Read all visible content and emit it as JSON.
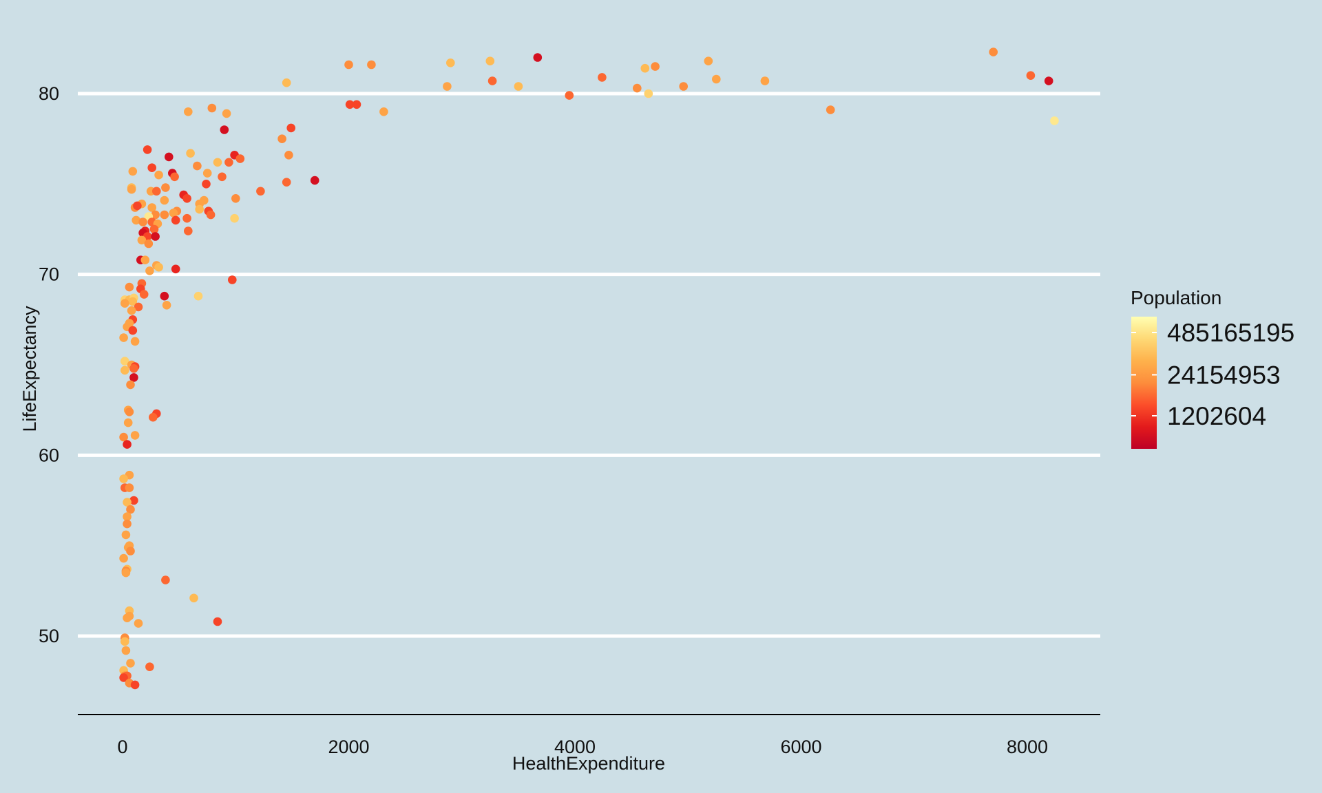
{
  "chart_data": {
    "type": "scatter",
    "title": "",
    "xlabel": "HealthExpenditure",
    "ylabel": "LifeExpectancy",
    "xlim": [
      -200,
      8600
    ],
    "ylim": [
      45.7,
      83.6
    ],
    "x_ticks": [
      0,
      2000,
      4000,
      6000,
      8000
    ],
    "y_ticks": [
      50,
      60,
      70,
      80
    ],
    "grid": "horizontal-major",
    "legend": {
      "title": "Population",
      "placement": "right",
      "labels": [
        "485165195",
        "24154953",
        "1202604"
      ],
      "label_fractions": [
        0.88,
        0.56,
        0.25
      ],
      "color_stops": [
        "#bd0026",
        "#e31a1c",
        "#fc4e2a",
        "#fd8d3c",
        "#feb24c",
        "#fed976",
        "#ffffb2"
      ]
    },
    "colors": {
      "background": "#cddfe6",
      "grid": "#ffffff",
      "axis": "#000000"
    },
    "points": [
      [
        2000,
        81.6,
        0.5
      ],
      [
        2200,
        81.6,
        0.5
      ],
      [
        2900,
        81.7,
        0.7
      ],
      [
        3250,
        81.8,
        0.7
      ],
      [
        3670,
        82.0,
        0.1
      ],
      [
        7700,
        82.3,
        0.5
      ],
      [
        8030,
        81.0,
        0.4
      ],
      [
        8190,
        80.7,
        0.1
      ],
      [
        8240,
        78.5,
        0.9
      ],
      [
        4240,
        80.9,
        0.4
      ],
      [
        4620,
        81.4,
        0.7
      ],
      [
        4710,
        81.5,
        0.5
      ],
      [
        5180,
        81.8,
        0.6
      ],
      [
        5250,
        80.8,
        0.6
      ],
      [
        5680,
        80.7,
        0.6
      ],
      [
        4550,
        80.3,
        0.5
      ],
      [
        4650,
        80.0,
        0.8
      ],
      [
        4960,
        80.4,
        0.5
      ],
      [
        3950,
        79.9,
        0.4
      ],
      [
        3500,
        80.4,
        0.7
      ],
      [
        3270,
        80.7,
        0.4
      ],
      [
        2870,
        80.4,
        0.6
      ],
      [
        2310,
        79.0,
        0.6
      ],
      [
        2070,
        79.4,
        0.3
      ],
      [
        2010,
        79.4,
        0.3
      ],
      [
        6260,
        79.1,
        0.5
      ],
      [
        1450,
        80.6,
        0.7
      ],
      [
        1490,
        78.1,
        0.3
      ],
      [
        1410,
        77.5,
        0.5
      ],
      [
        1470,
        76.6,
        0.5
      ],
      [
        1450,
        75.1,
        0.4
      ],
      [
        1700,
        75.2,
        0.1
      ],
      [
        1220,
        74.6,
        0.4
      ],
      [
        790,
        79.2,
        0.5
      ],
      [
        920,
        78.9,
        0.6
      ],
      [
        580,
        79.0,
        0.6
      ],
      [
        900,
        78.0,
        0.1
      ],
      [
        600,
        76.7,
        0.7
      ],
      [
        840,
        76.2,
        0.7
      ],
      [
        940,
        76.2,
        0.4
      ],
      [
        990,
        76.6,
        0.2
      ],
      [
        1040,
        76.4,
        0.4
      ],
      [
        410,
        76.5,
        0.1
      ],
      [
        220,
        76.9,
        0.3
      ],
      [
        660,
        76.0,
        0.5
      ],
      [
        750,
        75.6,
        0.6
      ],
      [
        880,
        75.4,
        0.4
      ],
      [
        260,
        75.9,
        0.3
      ],
      [
        440,
        75.6,
        0.1
      ],
      [
        460,
        75.4,
        0.4
      ],
      [
        320,
        75.5,
        0.6
      ],
      [
        90,
        75.7,
        0.6
      ],
      [
        80,
        74.8,
        0.7
      ],
      [
        80,
        74.7,
        0.6
      ],
      [
        740,
        75.0,
        0.3
      ],
      [
        540,
        74.4,
        0.2
      ],
      [
        570,
        74.2,
        0.3
      ],
      [
        250,
        74.6,
        0.6
      ],
      [
        300,
        74.6,
        0.4
      ],
      [
        380,
        74.8,
        0.5
      ],
      [
        720,
        74.1,
        0.6
      ],
      [
        1000,
        74.2,
        0.5
      ],
      [
        370,
        74.1,
        0.6
      ],
      [
        680,
        73.9,
        0.6
      ],
      [
        170,
        73.9,
        0.6
      ],
      [
        110,
        73.7,
        0.5
      ],
      [
        130,
        73.8,
        0.3
      ],
      [
        260,
        73.7,
        0.6
      ],
      [
        680,
        73.6,
        0.7
      ],
      [
        480,
        73.5,
        0.5
      ],
      [
        450,
        73.4,
        0.6
      ],
      [
        760,
        73.5,
        0.3
      ],
      [
        780,
        73.3,
        0.4
      ],
      [
        370,
        73.3,
        0.5
      ],
      [
        290,
        73.3,
        0.5
      ],
      [
        230,
        73.2,
        0.9
      ],
      [
        990,
        73.1,
        0.8
      ],
      [
        570,
        73.1,
        0.4
      ],
      [
        470,
        73.0,
        0.3
      ],
      [
        120,
        73.0,
        0.6
      ],
      [
        180,
        72.9,
        0.5
      ],
      [
        260,
        72.9,
        0.4
      ],
      [
        310,
        72.8,
        0.6
      ],
      [
        280,
        72.5,
        0.4
      ],
      [
        580,
        72.4,
        0.4
      ],
      [
        200,
        72.4,
        0.2
      ],
      [
        180,
        72.3,
        0.1
      ],
      [
        220,
        72.1,
        0.3
      ],
      [
        290,
        72.1,
        0.1
      ],
      [
        170,
        71.9,
        0.6
      ],
      [
        230,
        71.7,
        0.5
      ],
      [
        160,
        70.8,
        0.1
      ],
      [
        200,
        70.8,
        0.6
      ],
      [
        300,
        70.5,
        0.6
      ],
      [
        320,
        70.4,
        0.7
      ],
      [
        240,
        70.2,
        0.6
      ],
      [
        470,
        70.3,
        0.2
      ],
      [
        970,
        69.7,
        0.3
      ],
      [
        170,
        69.5,
        0.4
      ],
      [
        60,
        69.3,
        0.5
      ],
      [
        160,
        69.2,
        0.3
      ],
      [
        190,
        68.9,
        0.4
      ],
      [
        370,
        68.8,
        0.1
      ],
      [
        670,
        68.8,
        0.8
      ],
      [
        20,
        68.6,
        0.8
      ],
      [
        60,
        68.6,
        0.7
      ],
      [
        100,
        68.7,
        0.8
      ],
      [
        90,
        68.5,
        0.7
      ],
      [
        20,
        68.4,
        0.6
      ],
      [
        390,
        68.3,
        0.6
      ],
      [
        140,
        68.2,
        0.4
      ],
      [
        80,
        68.0,
        0.6
      ],
      [
        90,
        67.5,
        0.3
      ],
      [
        60,
        67.3,
        0.6
      ],
      [
        40,
        67.1,
        0.6
      ],
      [
        90,
        66.9,
        0.3
      ],
      [
        10,
        66.5,
        0.6
      ],
      [
        110,
        66.3,
        0.6
      ],
      [
        20,
        65.2,
        0.8
      ],
      [
        80,
        65.0,
        0.6
      ],
      [
        110,
        64.9,
        0.3
      ],
      [
        20,
        64.7,
        0.7
      ],
      [
        100,
        64.8,
        0.4
      ],
      [
        100,
        64.3,
        0.1
      ],
      [
        70,
        63.9,
        0.5
      ],
      [
        50,
        62.5,
        0.6
      ],
      [
        60,
        62.4,
        0.5
      ],
      [
        300,
        62.3,
        0.3
      ],
      [
        270,
        62.1,
        0.4
      ],
      [
        50,
        61.8,
        0.6
      ],
      [
        110,
        61.1,
        0.6
      ],
      [
        10,
        61.0,
        0.5
      ],
      [
        40,
        60.6,
        0.2
      ],
      [
        60,
        58.9,
        0.6
      ],
      [
        10,
        58.7,
        0.7
      ],
      [
        20,
        58.2,
        0.4
      ],
      [
        60,
        58.2,
        0.5
      ],
      [
        100,
        57.5,
        0.3
      ],
      [
        40,
        57.4,
        0.7
      ],
      [
        70,
        57.0,
        0.5
      ],
      [
        40,
        56.6,
        0.6
      ],
      [
        40,
        56.2,
        0.5
      ],
      [
        30,
        55.6,
        0.6
      ],
      [
        60,
        55.0,
        0.6
      ],
      [
        50,
        54.9,
        0.6
      ],
      [
        70,
        54.7,
        0.5
      ],
      [
        10,
        54.3,
        0.6
      ],
      [
        40,
        53.7,
        0.7
      ],
      [
        30,
        53.6,
        0.5
      ],
      [
        30,
        53.5,
        0.6
      ],
      [
        380,
        53.1,
        0.4
      ],
      [
        630,
        52.1,
        0.7
      ],
      [
        60,
        51.4,
        0.7
      ],
      [
        60,
        51.1,
        0.6
      ],
      [
        40,
        51.0,
        0.6
      ],
      [
        140,
        50.7,
        0.6
      ],
      [
        840,
        50.8,
        0.3
      ],
      [
        20,
        49.9,
        0.5
      ],
      [
        20,
        49.7,
        0.7
      ],
      [
        30,
        49.2,
        0.6
      ],
      [
        70,
        48.5,
        0.6
      ],
      [
        240,
        48.3,
        0.4
      ],
      [
        10,
        48.1,
        0.7
      ],
      [
        20,
        47.8,
        0.5
      ],
      [
        40,
        47.8,
        0.4
      ],
      [
        10,
        47.7,
        0.3
      ],
      [
        60,
        47.4,
        0.5
      ],
      [
        110,
        47.3,
        0.3
      ]
    ]
  }
}
